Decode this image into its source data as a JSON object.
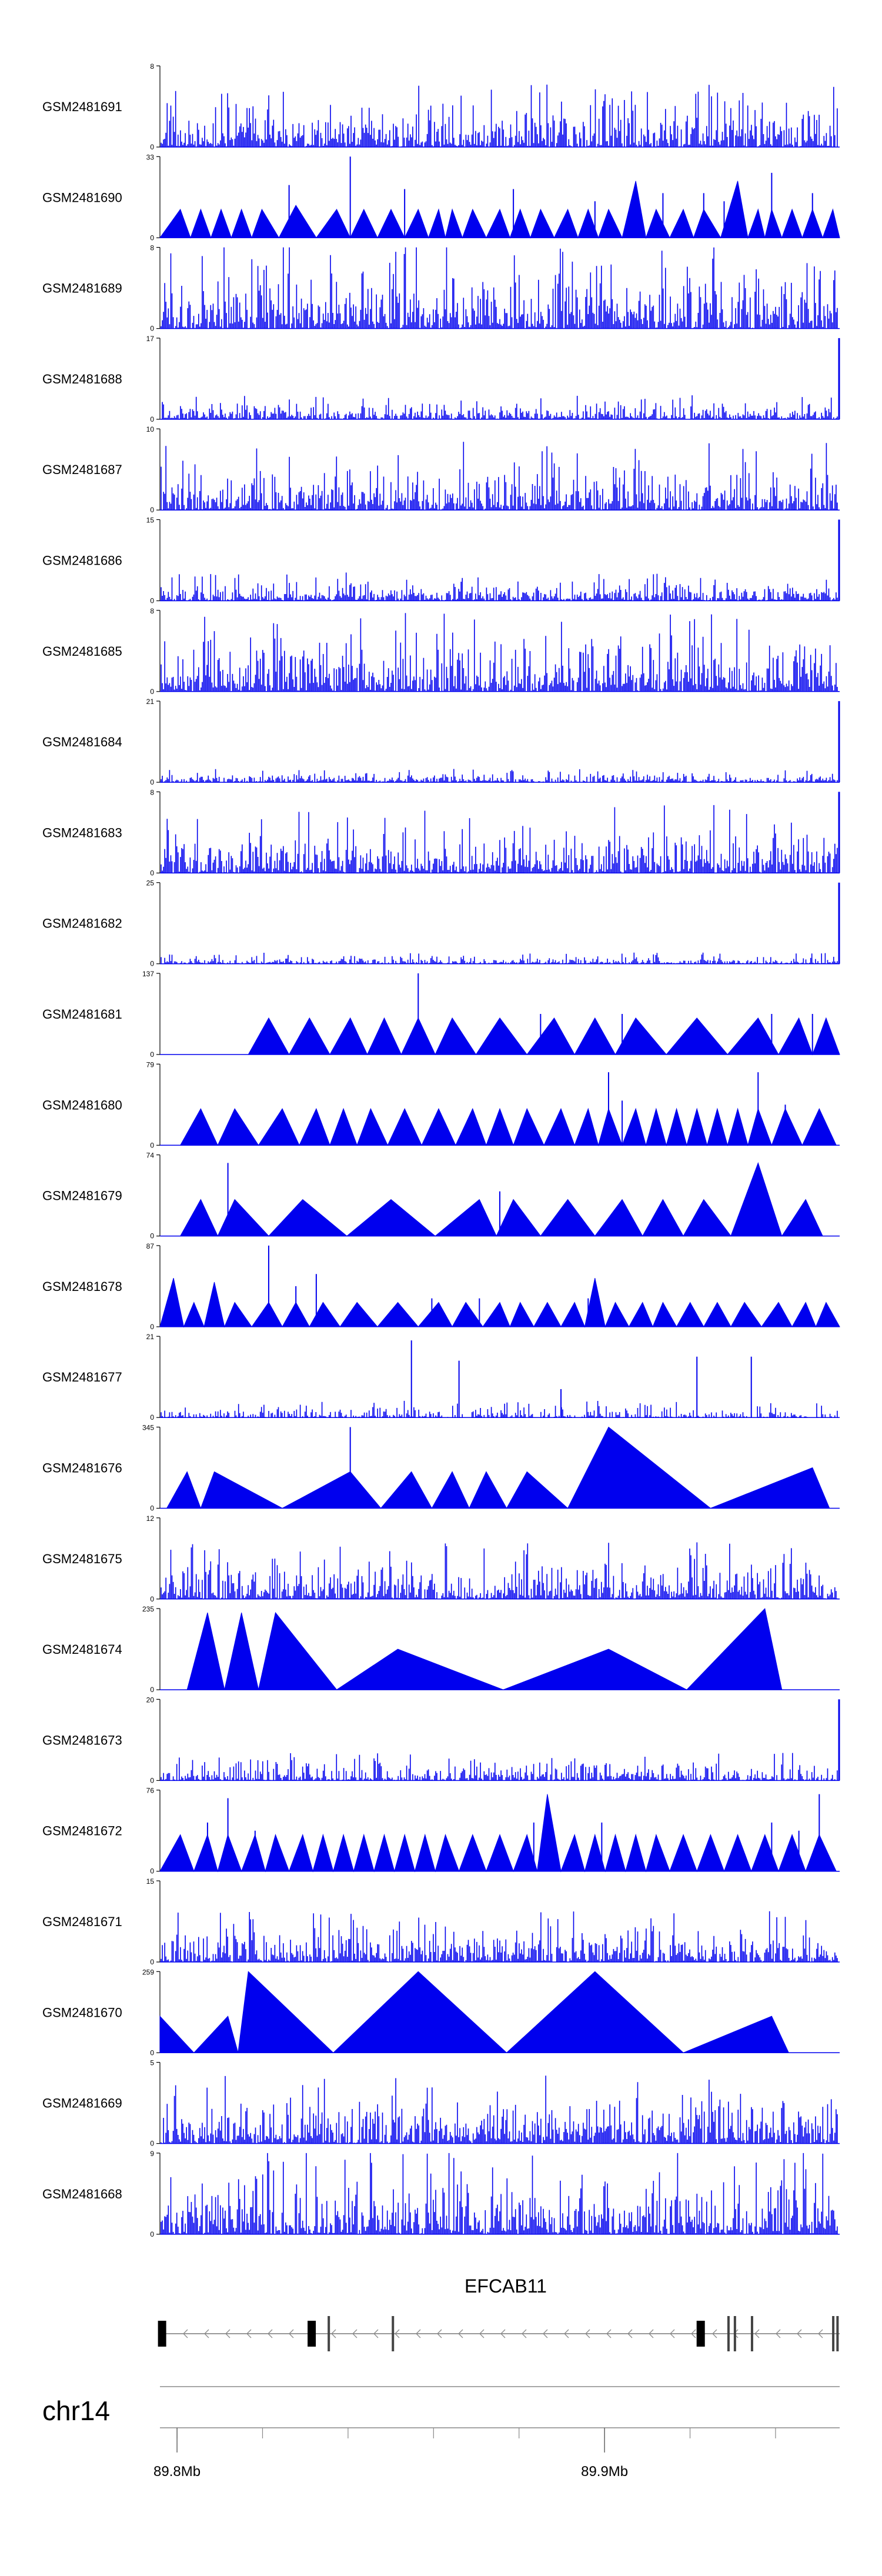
{
  "chart_data": {
    "type": "area",
    "title": "",
    "xlabel": "",
    "ylabel": "",
    "grid": false,
    "chromosome": "chr14",
    "x_range_mb": [
      89.796,
      89.955
    ],
    "x_ticks": [
      {
        "value": 89.8,
        "label": "89.8Mb"
      },
      {
        "value": 89.9,
        "label": "89.9Mb"
      }
    ],
    "gene": {
      "name": "EFCAB11",
      "strand": "-",
      "start_mb": 89.796,
      "end_mb": 89.955,
      "exons_mb": [
        89.7965,
        89.8315,
        89.8355,
        89.8505,
        89.9225,
        89.929,
        89.9305,
        89.9345,
        89.9535,
        89.9545
      ]
    },
    "tracks": [
      {
        "name": "GSM2481691",
        "ymax": "8",
        "ymin": "0",
        "style": "dense",
        "density": 1.0,
        "scale": 0.55,
        "seed": 11
      },
      {
        "name": "GSM2481690",
        "ymax": "33",
        "ymin": "0",
        "style": "tri",
        "peaks": [
          0.03,
          0.06,
          0.09,
          0.12,
          0.15,
          0.2,
          0.26,
          0.3,
          0.34,
          0.38,
          0.41,
          0.43,
          0.46,
          0.5,
          0.53,
          0.56,
          0.6,
          0.63,
          0.66,
          0.7,
          0.73,
          0.77,
          0.8,
          0.85,
          0.88,
          0.9,
          0.93,
          0.96,
          0.99
        ],
        "heights": [
          0.35,
          0.35,
          0.35,
          0.35,
          0.35,
          0.4,
          0.35,
          0.35,
          0.35,
          0.35,
          0.35,
          0.35,
          0.35,
          0.35,
          0.35,
          0.35,
          0.35,
          0.35,
          0.35,
          0.7,
          0.35,
          0.35,
          0.35,
          0.7,
          0.35,
          0.35,
          0.35,
          0.35,
          0.35
        ],
        "spikes": [
          [
            0.19,
            0.65
          ],
          [
            0.28,
            1.0
          ],
          [
            0.36,
            0.6
          ],
          [
            0.52,
            0.6
          ],
          [
            0.64,
            0.45
          ],
          [
            0.74,
            0.55
          ],
          [
            0.8,
            0.55
          ],
          [
            0.83,
            0.45
          ],
          [
            0.9,
            0.8
          ],
          [
            0.96,
            0.55
          ]
        ]
      },
      {
        "name": "GSM2481689",
        "ymax": "8",
        "ymin": "0",
        "style": "dense",
        "density": 1.0,
        "scale": 0.8,
        "seed": 21
      },
      {
        "name": "GSM2481688",
        "ymax": "17",
        "ymin": "0",
        "style": "dense",
        "density": 1.0,
        "scale": 0.22,
        "seed": 31,
        "tail": 1.0
      },
      {
        "name": "GSM2481687",
        "ymax": "10",
        "ymin": "0",
        "style": "dense",
        "density": 1.0,
        "scale": 0.6,
        "seed": 41
      },
      {
        "name": "GSM2481686",
        "ymax": "15",
        "ymin": "0",
        "style": "dense",
        "density": 1.0,
        "scale": 0.25,
        "seed": 51,
        "tail": 1.0
      },
      {
        "name": "GSM2481685",
        "ymax": "8",
        "ymin": "0",
        "style": "dense",
        "density": 1.0,
        "scale": 0.7,
        "seed": 61
      },
      {
        "name": "GSM2481684",
        "ymax": "21",
        "ymin": "0",
        "style": "dense",
        "density": 1.0,
        "scale": 0.12,
        "seed": 71,
        "tail": 1.0
      },
      {
        "name": "GSM2481683",
        "ymax": "8",
        "ymin": "0",
        "style": "dense",
        "density": 1.0,
        "scale": 0.6,
        "seed": 81,
        "tail": 1.0
      },
      {
        "name": "GSM2481682",
        "ymax": "25",
        "ymin": "0",
        "style": "dense",
        "density": 1.0,
        "scale": 0.1,
        "seed": 91,
        "tail": 1.0
      },
      {
        "name": "GSM2481681",
        "ymax": "137",
        "ymin": "0",
        "style": "tri",
        "peaks": [
          0.16,
          0.22,
          0.28,
          0.33,
          0.38,
          0.43,
          0.5,
          0.58,
          0.64,
          0.7,
          0.79,
          0.88,
          0.94,
          0.98
        ],
        "heights": [
          0.45,
          0.45,
          0.45,
          0.45,
          0.45,
          0.45,
          0.45,
          0.45,
          0.45,
          0.45,
          0.45,
          0.45,
          0.45,
          0.45
        ],
        "spikes": [
          [
            0.38,
            1.0
          ],
          [
            0.56,
            0.5
          ],
          [
            0.68,
            0.5
          ],
          [
            0.9,
            0.5
          ],
          [
            0.96,
            0.5
          ]
        ]
      },
      {
        "name": "GSM2481680",
        "ymax": "79",
        "ymin": "0",
        "style": "tri",
        "peaks": [
          0.06,
          0.11,
          0.18,
          0.23,
          0.27,
          0.31,
          0.36,
          0.41,
          0.46,
          0.5,
          0.54,
          0.59,
          0.63,
          0.66,
          0.7,
          0.73,
          0.76,
          0.79,
          0.82,
          0.85,
          0.88,
          0.92,
          0.97
        ],
        "heights": [
          0.45,
          0.45,
          0.45,
          0.45,
          0.45,
          0.45,
          0.45,
          0.45,
          0.45,
          0.45,
          0.45,
          0.45,
          0.45,
          0.45,
          0.45,
          0.45,
          0.45,
          0.45,
          0.45,
          0.45,
          0.45,
          0.45,
          0.45
        ],
        "spikes": [
          [
            0.66,
            0.9
          ],
          [
            0.68,
            0.55
          ],
          [
            0.88,
            0.9
          ],
          [
            0.92,
            0.5
          ]
        ]
      },
      {
        "name": "GSM2481679",
        "ymax": "74",
        "ymin": "0",
        "style": "tri",
        "peaks": [
          0.06,
          0.11,
          0.21,
          0.34,
          0.47,
          0.52,
          0.6,
          0.68,
          0.74,
          0.8,
          0.88,
          0.95
        ],
        "heights": [
          0.45,
          0.45,
          0.45,
          0.45,
          0.45,
          0.45,
          0.45,
          0.45,
          0.45,
          0.45,
          0.9,
          0.45
        ],
        "spikes": [
          [
            0.1,
            0.9
          ],
          [
            0.5,
            0.55
          ]
        ]
      },
      {
        "name": "GSM2481678",
        "ymax": "87",
        "ymin": "0",
        "style": "tri",
        "peaks": [
          0.02,
          0.05,
          0.08,
          0.11,
          0.16,
          0.2,
          0.24,
          0.29,
          0.35,
          0.41,
          0.45,
          0.5,
          0.53,
          0.57,
          0.61,
          0.64,
          0.67,
          0.71,
          0.74,
          0.78,
          0.82,
          0.86,
          0.91,
          0.95,
          0.98
        ],
        "heights": [
          0.6,
          0.3,
          0.55,
          0.3,
          0.3,
          0.3,
          0.3,
          0.3,
          0.3,
          0.3,
          0.3,
          0.3,
          0.3,
          0.3,
          0.3,
          0.6,
          0.3,
          0.3,
          0.3,
          0.3,
          0.3,
          0.3,
          0.3,
          0.3,
          0.3
        ],
        "spikes": [
          [
            0.16,
            1.0
          ],
          [
            0.2,
            0.5
          ],
          [
            0.23,
            0.65
          ],
          [
            0.4,
            0.35
          ],
          [
            0.47,
            0.35
          ],
          [
            0.63,
            0.35
          ]
        ]
      },
      {
        "name": "GSM2481677",
        "ymax": "21",
        "ymin": "0",
        "style": "dense",
        "density": 0.7,
        "scale": 0.15,
        "seed": 101,
        "spikes": [
          [
            0.37,
            0.95
          ],
          [
            0.44,
            0.7
          ],
          [
            0.59,
            0.35
          ],
          [
            0.79,
            0.75
          ],
          [
            0.87,
            0.75
          ]
        ]
      },
      {
        "name": "GSM2481676",
        "ymax": "345",
        "ymin": "0",
        "style": "tri",
        "peaks": [
          0.04,
          0.08,
          0.28,
          0.37,
          0.43,
          0.48,
          0.54,
          0.66,
          0.96
        ],
        "heights": [
          0.45,
          0.45,
          0.45,
          0.45,
          0.45,
          0.45,
          0.45,
          1.0,
          0.5
        ],
        "spikes": [
          [
            0.28,
            1.0
          ]
        ]
      },
      {
        "name": "GSM2481675",
        "ymax": "12",
        "ymin": "0",
        "style": "dense",
        "density": 1.0,
        "scale": 0.5,
        "seed": 111
      },
      {
        "name": "GSM2481674",
        "ymax": "235",
        "ymin": "0",
        "style": "tri",
        "peaks": [
          0.07,
          0.12,
          0.17,
          0.35,
          0.66,
          0.89
        ],
        "heights": [
          0.95,
          0.95,
          0.95,
          0.5,
          0.5,
          1.0
        ],
        "spikes": []
      },
      {
        "name": "GSM2481673",
        "ymax": "20",
        "ymin": "0",
        "style": "dense",
        "density": 0.9,
        "scale": 0.25,
        "seed": 121,
        "tail": 1.0
      },
      {
        "name": "GSM2481672",
        "ymax": "76",
        "ymin": "0",
        "style": "tri",
        "peaks": [
          0.03,
          0.07,
          0.1,
          0.14,
          0.17,
          0.21,
          0.24,
          0.27,
          0.3,
          0.33,
          0.36,
          0.39,
          0.42,
          0.46,
          0.5,
          0.54,
          0.57,
          0.61,
          0.64,
          0.67,
          0.7,
          0.73,
          0.77,
          0.81,
          0.85,
          0.89,
          0.93,
          0.97
        ],
        "heights": [
          0.45,
          0.45,
          0.45,
          0.45,
          0.45,
          0.45,
          0.45,
          0.45,
          0.45,
          0.45,
          0.45,
          0.45,
          0.45,
          0.45,
          0.45,
          0.45,
          0.95,
          0.45,
          0.45,
          0.45,
          0.45,
          0.45,
          0.45,
          0.45,
          0.45,
          0.45,
          0.45,
          0.45
        ],
        "spikes": [
          [
            0.07,
            0.6
          ],
          [
            0.1,
            0.9
          ],
          [
            0.14,
            0.5
          ],
          [
            0.55,
            0.6
          ],
          [
            0.65,
            0.6
          ],
          [
            0.9,
            0.6
          ],
          [
            0.94,
            0.5
          ],
          [
            0.97,
            0.95
          ]
        ]
      },
      {
        "name": "GSM2481671",
        "ymax": "15",
        "ymin": "0",
        "style": "dense",
        "density": 1.0,
        "scale": 0.45,
        "seed": 131
      },
      {
        "name": "GSM2481670",
        "ymax": "259",
        "ymin": "0",
        "style": "tri",
        "peaks": [
          0.0,
          0.1,
          0.13,
          0.38,
          0.64,
          0.9
        ],
        "heights": [
          0.45,
          0.45,
          1.0,
          1.0,
          1.0,
          0.45
        ],
        "spikes": []
      },
      {
        "name": "GSM2481669",
        "ymax": "5",
        "ymin": "0",
        "style": "dense",
        "density": 1.0,
        "scale": 0.6,
        "seed": 141
      },
      {
        "name": "GSM2481668",
        "ymax": "9",
        "ymin": "0",
        "style": "dense",
        "density": 1.0,
        "scale": 0.75,
        "seed": 151
      }
    ]
  }
}
